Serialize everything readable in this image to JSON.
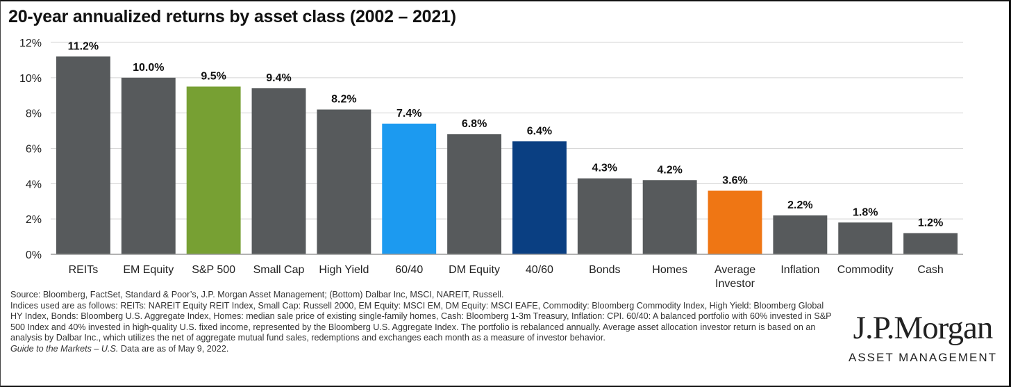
{
  "title": "20-year annualized returns by asset class (2002 – 2021)",
  "chart_data": {
    "type": "bar",
    "title": "20-year annualized returns by asset class (2002 – 2021)",
    "categories": [
      "REITs",
      "EM Equity",
      "S&P 500",
      "Small Cap",
      "High Yield",
      "60/40",
      "DM Equity",
      "40/60",
      "Bonds",
      "Homes",
      "Average Investor",
      "Inflation",
      "Commodity",
      "Cash"
    ],
    "category_lines": [
      [
        "REITs"
      ],
      [
        "EM Equity"
      ],
      [
        "S&P 500"
      ],
      [
        "Small Cap"
      ],
      [
        "High Yield"
      ],
      [
        "60/40"
      ],
      [
        "DM Equity"
      ],
      [
        "40/60"
      ],
      [
        "Bonds"
      ],
      [
        "Homes"
      ],
      [
        "Average",
        "Investor"
      ],
      [
        "Inflation"
      ],
      [
        "Commodity"
      ],
      [
        "Cash"
      ]
    ],
    "values": [
      11.2,
      10.0,
      9.5,
      9.4,
      8.2,
      7.4,
      6.8,
      6.4,
      4.3,
      4.2,
      3.6,
      2.2,
      1.8,
      1.2
    ],
    "data_labels": [
      "11.2%",
      "10.0%",
      "9.5%",
      "9.4%",
      "8.2%",
      "7.4%",
      "6.8%",
      "6.4%",
      "4.3%",
      "4.2%",
      "3.6%",
      "2.2%",
      "1.8%",
      "1.2%"
    ],
    "colors": [
      "#575a5c",
      "#575a5c",
      "#77a033",
      "#575a5c",
      "#575a5c",
      "#1c9af0",
      "#575a5c",
      "#0a3f82",
      "#575a5c",
      "#575a5c",
      "#ef7614",
      "#575a5c",
      "#575a5c",
      "#575a5c"
    ],
    "yticks": [
      0,
      2,
      4,
      6,
      8,
      10,
      12
    ],
    "ytick_labels": [
      "0%",
      "2%",
      "4%",
      "6%",
      "8%",
      "10%",
      "12%"
    ],
    "ylim": [
      0,
      12
    ],
    "grid": true,
    "xlabel": "",
    "ylabel": ""
  },
  "source": {
    "line1": "Source: Bloomberg, FactSet, Standard & Poor’s, J.P. Morgan Asset Management; (Bottom) Dalbar Inc, MSCI, NAREIT, Russell.",
    "line2": "Indices used are as follows: REITs: NAREIT Equity REIT Index, Small Cap: Russell 2000, EM Equity: MSCI EM, DM Equity: MSCI EAFE, Commodity: Bloomberg Commodity Index, High Yield: Bloomberg Global HY Index, Bonds: Bloomberg U.S. Aggregate Index, Homes: median sale price of existing single-family homes, Cash: Bloomberg 1-3m Treasury, Inflation: CPI. 60/40: A balanced portfolio with 60% invested in S&P 500 Index and 40% invested in high-quality U.S. fixed income, represented by the Bloomberg U.S. Aggregate Index. The portfolio is rebalanced annually. Average asset allocation investor return is based on an analysis by Dalbar Inc., which utilizes the net of aggregate mutual fund sales, redemptions and exchanges each month as a measure of investor behavior.",
    "guide": "Guide to the Markets – U.S.",
    "guide_suffix": " Data are as of May 9, 2022."
  },
  "logo": {
    "name": "J.P.Morgan",
    "tagline": "ASSET MANAGEMENT"
  }
}
